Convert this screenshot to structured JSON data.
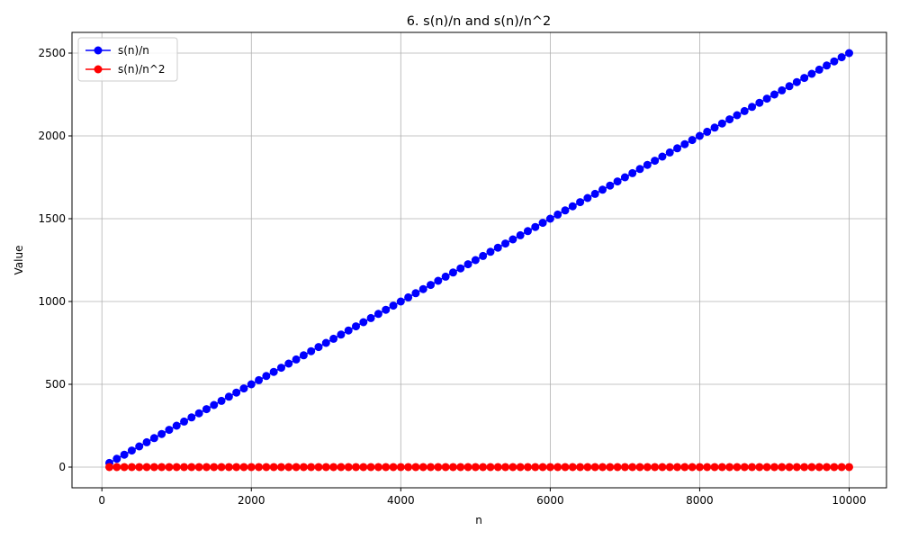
{
  "chart_data": {
    "type": "line",
    "title": "6. s(n)/n and s(n)/n^2",
    "xlabel": "n",
    "ylabel": "Value",
    "xlim": [
      -400,
      10500
    ],
    "ylim": [
      -125,
      2625
    ],
    "xticks": [
      0,
      2000,
      4000,
      6000,
      8000,
      10000
    ],
    "yticks": [
      0,
      500,
      1000,
      1500,
      2000,
      2500
    ],
    "grid": true,
    "legend_position": "top-left",
    "x": [
      100,
      200,
      300,
      400,
      500,
      600,
      700,
      800,
      900,
      1000,
      1100,
      1200,
      1300,
      1400,
      1500,
      1600,
      1700,
      1800,
      1900,
      2000,
      2100,
      2200,
      2300,
      2400,
      2500,
      2600,
      2700,
      2800,
      2900,
      3000,
      3100,
      3200,
      3300,
      3400,
      3500,
      3600,
      3700,
      3800,
      3900,
      4000,
      4100,
      4200,
      4300,
      4400,
      4500,
      4600,
      4700,
      4800,
      4900,
      5000,
      5100,
      5200,
      5300,
      5400,
      5500,
      5600,
      5700,
      5800,
      5900,
      6000,
      6100,
      6200,
      6300,
      6400,
      6500,
      6600,
      6700,
      6800,
      6900,
      7000,
      7100,
      7200,
      7300,
      7400,
      7500,
      7600,
      7700,
      7800,
      7900,
      8000,
      8100,
      8200,
      8300,
      8400,
      8500,
      8600,
      8700,
      8800,
      8900,
      9000,
      9100,
      9200,
      9300,
      9400,
      9500,
      9600,
      9700,
      9800,
      9900,
      10000
    ],
    "series": [
      {
        "name": "s(n)/n",
        "color": "#0000ff",
        "values": [
          25,
          50,
          75,
          100,
          125,
          150,
          175,
          200,
          225,
          250,
          275,
          300,
          325,
          350,
          375,
          400,
          425,
          450,
          475,
          500,
          525,
          550,
          575,
          600,
          625,
          650,
          675,
          700,
          725,
          750,
          775,
          800,
          825,
          850,
          875,
          900,
          925,
          950,
          975,
          1000,
          1025,
          1050,
          1075,
          1100,
          1125,
          1150,
          1175,
          1200,
          1225,
          1250,
          1275,
          1300,
          1325,
          1350,
          1375,
          1400,
          1425,
          1450,
          1475,
          1500,
          1525,
          1550,
          1575,
          1600,
          1625,
          1650,
          1675,
          1700,
          1725,
          1750,
          1775,
          1800,
          1825,
          1850,
          1875,
          1900,
          1925,
          1950,
          1975,
          2000,
          2025,
          2050,
          2075,
          2100,
          2125,
          2150,
          2175,
          2200,
          2225,
          2250,
          2275,
          2300,
          2325,
          2350,
          2375,
          2400,
          2425,
          2450,
          2475,
          2500
        ]
      },
      {
        "name": "s(n)/n^2",
        "color": "#ff0000",
        "values": [
          0.25,
          0.25,
          0.25,
          0.25,
          0.25,
          0.25,
          0.25,
          0.25,
          0.25,
          0.25,
          0.25,
          0.25,
          0.25,
          0.25,
          0.25,
          0.25,
          0.25,
          0.25,
          0.25,
          0.25,
          0.25,
          0.25,
          0.25,
          0.25,
          0.25,
          0.25,
          0.25,
          0.25,
          0.25,
          0.25,
          0.25,
          0.25,
          0.25,
          0.25,
          0.25,
          0.25,
          0.25,
          0.25,
          0.25,
          0.25,
          0.25,
          0.25,
          0.25,
          0.25,
          0.25,
          0.25,
          0.25,
          0.25,
          0.25,
          0.25,
          0.25,
          0.25,
          0.25,
          0.25,
          0.25,
          0.25,
          0.25,
          0.25,
          0.25,
          0.25,
          0.25,
          0.25,
          0.25,
          0.25,
          0.25,
          0.25,
          0.25,
          0.25,
          0.25,
          0.25,
          0.25,
          0.25,
          0.25,
          0.25,
          0.25,
          0.25,
          0.25,
          0.25,
          0.25,
          0.25,
          0.25,
          0.25,
          0.25,
          0.25,
          0.25,
          0.25,
          0.25,
          0.25,
          0.25,
          0.25,
          0.25,
          0.25,
          0.25,
          0.25,
          0.25,
          0.25,
          0.25,
          0.25,
          0.25,
          0.25
        ]
      }
    ]
  }
}
